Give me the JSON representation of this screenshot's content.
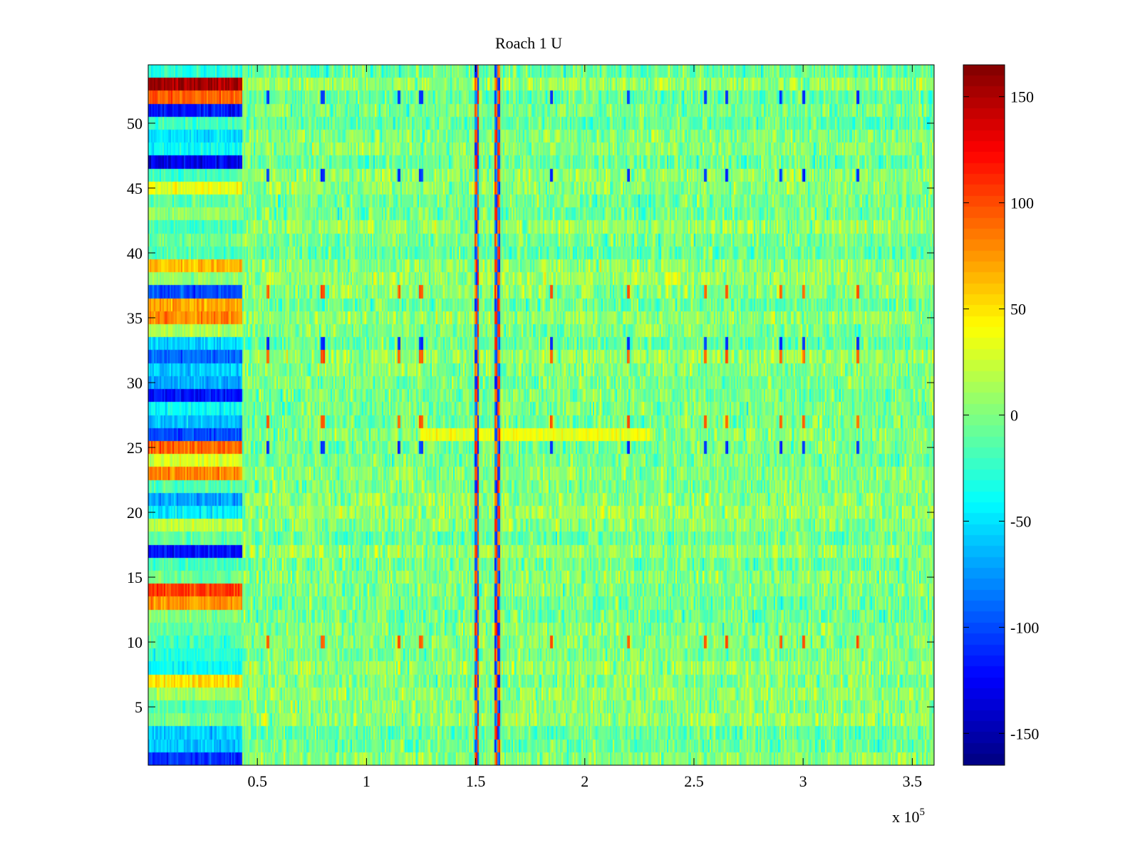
{
  "chart_data": {
    "type": "heatmap",
    "title": "Roach 1 U",
    "xlabel": "",
    "ylabel": "",
    "x_multiplier_label": "x 10",
    "x_multiplier_exponent": "5",
    "xlim": [
      0.0,
      3.6
    ],
    "ylim": [
      0.5,
      54.5
    ],
    "x_ticks": [
      0.5,
      1,
      1.5,
      2,
      2.5,
      3,
      3.5
    ],
    "x_tick_labels": [
      "0.5",
      "1",
      "1.5",
      "2",
      "2.5",
      "3",
      "3.5"
    ],
    "y_ticks": [
      5,
      10,
      15,
      20,
      25,
      30,
      35,
      40,
      45,
      50
    ],
    "y_tick_labels": [
      "5",
      "10",
      "15",
      "20",
      "25",
      "30",
      "35",
      "40",
      "45",
      "50"
    ],
    "colormap": "jet",
    "clim": [
      -165,
      165
    ],
    "colorbar_ticks": [
      150,
      100,
      50,
      0,
      -50,
      -100,
      -150
    ],
    "colorbar_tick_labels": [
      "150",
      "100",
      "50",
      "0",
      "-50",
      "-100",
      "-150"
    ],
    "rows": 54,
    "baseline_segment_end_x": 0.43,
    "baseline_row_means": {
      "1": -110,
      "2": -60,
      "3": -55,
      "4": -5,
      "5": -15,
      "6": 10,
      "7": 50,
      "8": -40,
      "9": -30,
      "10": -20,
      "11": -10,
      "12": 0,
      "13": 75,
      "14": 105,
      "15": -5,
      "16": -20,
      "17": -120,
      "18": -10,
      "19": 20,
      "20": -45,
      "21": -70,
      "22": -15,
      "23": 80,
      "24": 30,
      "25": 90,
      "26": -100,
      "27": -60,
      "28": -40,
      "29": -120,
      "30": -70,
      "31": -60,
      "32": -90,
      "33": -55,
      "34": 15,
      "35": 80,
      "36": 70,
      "37": -100,
      "38": 5,
      "39": 60,
      "40": -15,
      "41": -5,
      "42": -20,
      "43": 10,
      "44": -10,
      "45": 35,
      "46": -20,
      "47": -130,
      "48": -40,
      "49": -50,
      "50": -20,
      "51": -120,
      "52": 95,
      "53": 155,
      "54": -30
    },
    "vertical_stripes": [
      {
        "x": 1.505,
        "kind": "dipole",
        "amplitude": 120
      },
      {
        "x": 1.6,
        "kind": "dipole",
        "amplitude": 120
      }
    ],
    "periodic_event_columns_x": [
      0.55,
      0.8,
      1.15,
      1.25,
      1.5,
      1.85,
      2.2,
      2.55,
      2.65,
      2.9,
      3.0,
      3.25
    ],
    "event_rows": {
      "positive": [
        10,
        27,
        32,
        37
      ],
      "negative": [
        10,
        25,
        33,
        37,
        46,
        52
      ]
    },
    "background_range": [
      -45,
      45
    ],
    "highlight_row_bands": [
      {
        "row": 26,
        "x_range": [
          1.25,
          2.3
        ],
        "mean": 35
      }
    ]
  }
}
